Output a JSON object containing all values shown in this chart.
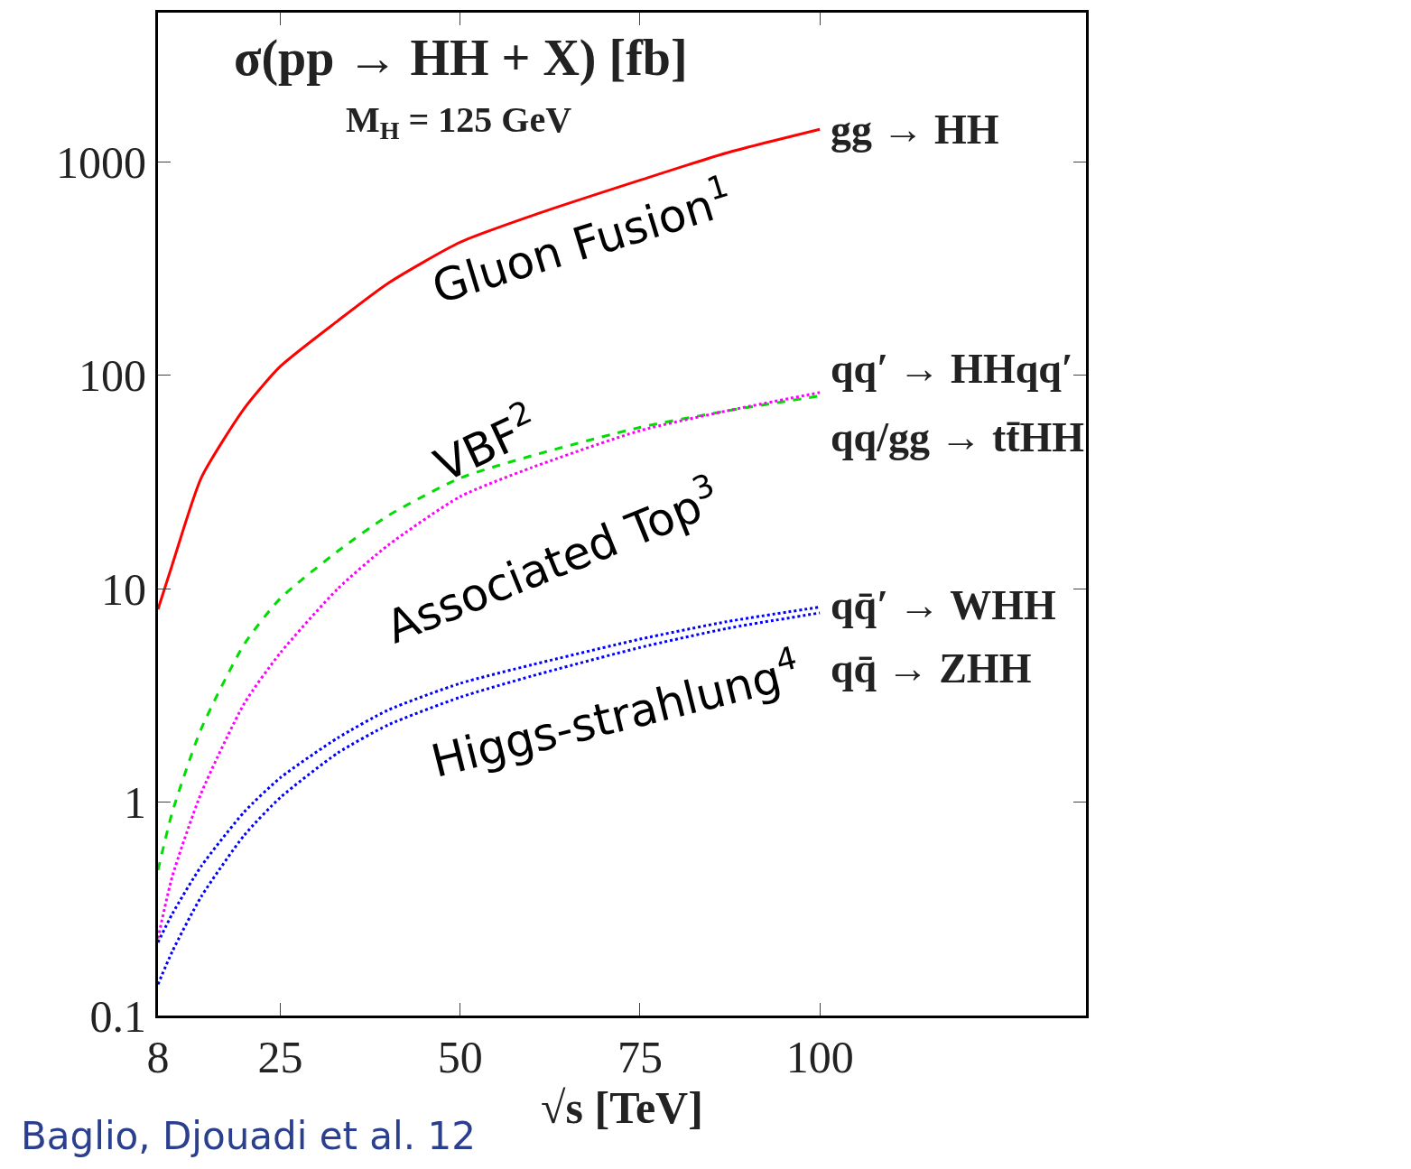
{
  "chart_data": {
    "type": "line",
    "title": "σ(pp → HH + X) [fb]",
    "subtitle": "M$_{H}$ = 125 GeV",
    "xlabel": "√s [TeV]",
    "x": [
      8,
      10,
      14,
      20,
      25,
      33,
      40,
      50,
      60,
      75,
      87,
      100
    ],
    "series": [
      {
        "name": "gg → HH",
        "color": "#ff0000",
        "line_style": "solid",
        "values": [
          8,
          13,
          33,
          70,
          110,
          180,
          270,
          420,
          560,
          820,
          1100,
          1420
        ]
      },
      {
        "name": "qq′ → HHqq′",
        "color": "#00dd00",
        "line_style": "dashed",
        "values": [
          0.48,
          0.9,
          2.2,
          5.5,
          9,
          15,
          22,
          33,
          42,
          57,
          68,
          80
        ]
      },
      {
        "name": "qq/gg → tt̄HH",
        "color": "#ff00ff",
        "line_style": "dotted",
        "values": [
          0.23,
          0.45,
          1.1,
          2.9,
          5,
          10,
          16,
          27,
          37,
          55,
          68,
          83
        ]
      },
      {
        "name": "qq̄′ → WHH",
        "color": "#0000ff",
        "line_style": "dotted",
        "values": [
          0.22,
          0.3,
          0.5,
          0.9,
          1.3,
          2,
          2.7,
          3.6,
          4.4,
          5.8,
          7,
          8.2
        ]
      },
      {
        "name": "qq̄ → ZHH",
        "color": "#0000ff",
        "line_style": "dotted",
        "values": [
          0.14,
          0.2,
          0.36,
          0.7,
          1.05,
          1.7,
          2.3,
          3.1,
          3.9,
          5.3,
          6.5,
          7.7
        ]
      }
    ],
    "log": "y",
    "xlim": [
      8,
      137
    ],
    "ylim": [
      0.1,
      5000
    ],
    "xticks": [
      8,
      25,
      50,
      75,
      100
    ],
    "yticks": [
      0.1,
      1,
      10,
      100,
      1000
    ],
    "legend": false,
    "marker": "none",
    "annotations": [
      "Gluon Fusion$^{1}$",
      "VBF$^{2}$",
      "Associated Top$^{3}$",
      "Higgs-strahlung$^{4}$",
      "Baglio, Djouadi et al. 12"
    ]
  }
}
